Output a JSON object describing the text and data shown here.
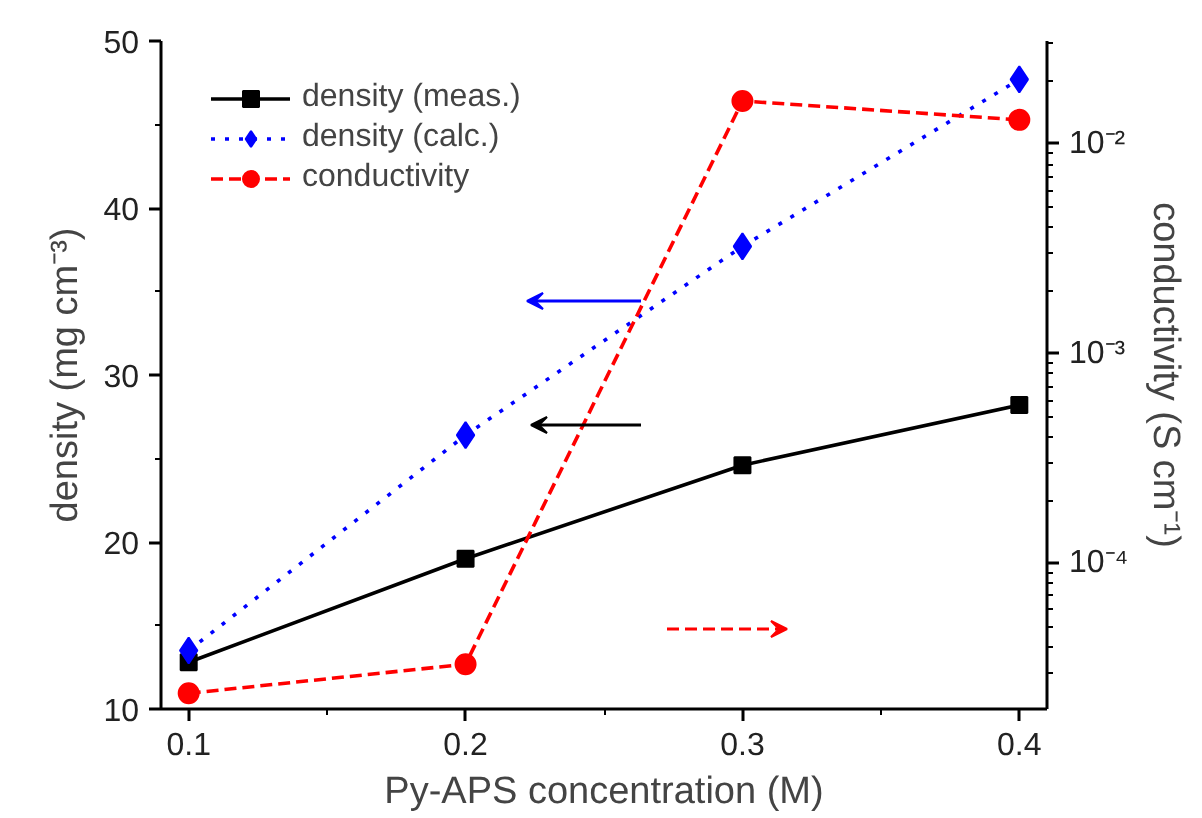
{
  "chart_data": {
    "type": "line",
    "xlabel": "Py-APS concentration (M)",
    "ylabel": "density (mg cm⁻³)",
    "y2label": "conductivity (S cm⁻¹)",
    "x": [
      0.1,
      0.2,
      0.3,
      0.4
    ],
    "xlim": [
      0.09,
      0.41
    ],
    "xticks": [
      0.1,
      0.2,
      0.3,
      0.4
    ],
    "ylim": [
      10,
      50
    ],
    "yticks": [
      10,
      20,
      30,
      40,
      50
    ],
    "y2lim": [
      2.02e-05,
      0.0309
    ],
    "y2ticks": [
      {
        "value": 0.0001,
        "label": "10⁻⁴"
      },
      {
        "value": 0.001,
        "label": "10⁻³"
      },
      {
        "value": 0.01,
        "label": "10⁻²"
      }
    ],
    "log": "y2",
    "grid": false,
    "legend": "top left",
    "series": [
      {
        "name": "density (meas.)",
        "color": "#000000",
        "marker": "square",
        "line_style": "solid",
        "values": [
          12.8,
          19.0,
          24.6,
          28.2
        ]
      },
      {
        "name": "density (calc.)",
        "color": "#0000ff",
        "marker": "diamond",
        "line_style": "dotted",
        "values": [
          13.5,
          26.4,
          37.7,
          47.7
        ]
      },
      {
        "name": "conductivity",
        "color": "#ff0000",
        "marker": "circle",
        "line_style": "dashed",
        "axis": "y2",
        "values": [
          2.4e-05,
          3.3e-05,
          0.016,
          0.013
        ]
      }
    ]
  }
}
